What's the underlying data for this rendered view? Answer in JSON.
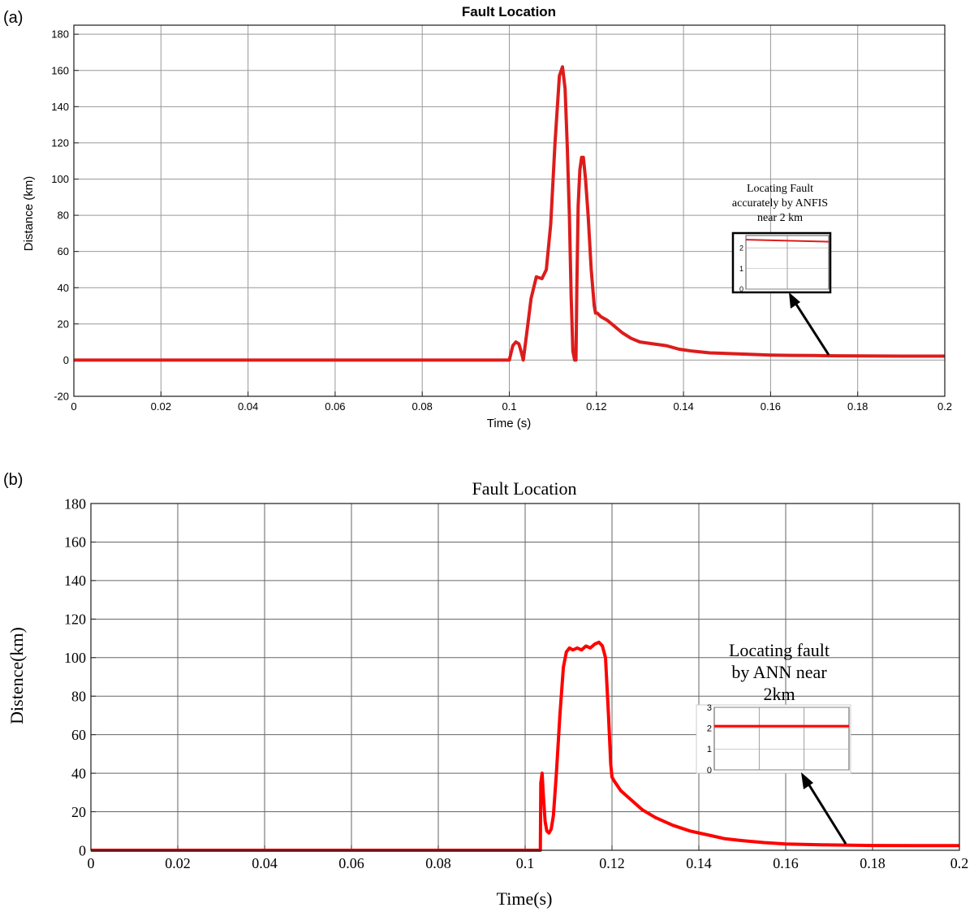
{
  "chart_data": [
    {
      "panel": "(a)",
      "type": "line",
      "title": "Fault Location",
      "xlabel": "Time (s)",
      "ylabel": "Distance (km)",
      "xlim": [
        0,
        0.2
      ],
      "ylim": [
        -20,
        185
      ],
      "xticks": [
        "0",
        "0.02",
        "0.04",
        "0.06",
        "0.08",
        "0.1",
        "0.12",
        "0.14",
        "0.16",
        "0.18",
        "0.2"
      ],
      "yticks": [
        "-20",
        "0",
        "20",
        "40",
        "60",
        "80",
        "100",
        "120",
        "140",
        "160",
        "180"
      ],
      "grid": true,
      "color": "#dd1c1c",
      "series": [
        {
          "x": [
            0,
            0.1,
            0.1003,
            0.1008,
            0.1015,
            0.1022,
            0.1028,
            0.1032,
            0.104,
            0.105,
            0.1062,
            0.1075,
            0.1085,
            0.1095,
            0.1105,
            0.1115,
            0.1122,
            0.1128,
            0.1133,
            0.1138,
            0.1142,
            0.1146,
            0.115,
            0.1153,
            0.1155,
            0.1158,
            0.1162,
            0.1166,
            0.117,
            0.1175,
            0.1181,
            0.1188,
            0.1195,
            0.1198,
            0.1202,
            0.121,
            0.1225,
            0.124,
            0.126,
            0.128,
            0.13,
            0.133,
            0.136,
            0.139,
            0.142,
            0.146,
            0.15,
            0.155,
            0.16,
            0.165,
            0.17,
            0.175,
            0.18,
            0.19,
            0.2
          ],
          "y": [
            0,
            0,
            3,
            8,
            10,
            9,
            4,
            0,
            15,
            34,
            46,
            45,
            50,
            75,
            120,
            157,
            162,
            150,
            118,
            80,
            35,
            5,
            0,
            0,
            40,
            85,
            105,
            112,
            112,
            100,
            80,
            50,
            30,
            26,
            26,
            24,
            22,
            19,
            15,
            12,
            10,
            9,
            8,
            6,
            5,
            4,
            3.7,
            3.2,
            2.8,
            2.6,
            2.5,
            2.4,
            2.3,
            2.2,
            2.2
          ]
        }
      ],
      "inset": {
        "yticks": [
          "2",
          "1",
          "0"
        ],
        "ylim": [
          0,
          2.6
        ],
        "line_y": [
          2.4,
          2.3
        ]
      },
      "annotation": [
        "Locating Fault",
        "accurately by ANFIS",
        "near 2 km"
      ]
    },
    {
      "panel": "(b)",
      "type": "line",
      "title": "Fault Location",
      "xlabel": "Time(s)",
      "ylabel": "Distence(km)",
      "xlim": [
        0,
        0.2
      ],
      "ylim": [
        0,
        180
      ],
      "xticks": [
        "0",
        "0.02",
        "0.04",
        "0.06",
        "0.08",
        "0.1",
        "0.12",
        "0.14",
        "0.16",
        "0.18",
        "0.2"
      ],
      "yticks": [
        "0",
        "20",
        "40",
        "60",
        "80",
        "100",
        "120",
        "140",
        "160",
        "180"
      ],
      "grid": true,
      "color": "#ff0000",
      "series": [
        {
          "x": [
            0,
            0.1035,
            0.1036,
            0.1039,
            0.1042,
            0.1046,
            0.105,
            0.1055,
            0.106,
            0.1065,
            0.1072,
            0.108,
            0.1088,
            0.1095,
            0.1102,
            0.111,
            0.112,
            0.113,
            0.114,
            0.115,
            0.116,
            0.117,
            0.1178,
            0.1185,
            0.1192,
            0.1197,
            0.12,
            0.1205,
            0.122,
            0.124,
            0.127,
            0.13,
            0.134,
            0.138,
            0.142,
            0.146,
            0.15,
            0.155,
            0.16,
            0.165,
            0.17,
            0.175,
            0.18,
            0.19,
            0.2
          ],
          "y": [
            0,
            0,
            35,
            40,
            28,
            15,
            10,
            9,
            11,
            18,
            40,
            70,
            95,
            103,
            105,
            104,
            105,
            104,
            106,
            105,
            107,
            108,
            106,
            100,
            70,
            45,
            38,
            36,
            31,
            27,
            21,
            17,
            13,
            10,
            8,
            6,
            5,
            4,
            3.3,
            3.0,
            2.8,
            2.6,
            2.5,
            2.4,
            2.4
          ]
        }
      ],
      "inset": {
        "yticks": [
          "3",
          "2",
          "1",
          "0"
        ],
        "ylim": [
          0,
          3
        ],
        "line_y": [
          2.1,
          2.1
        ]
      },
      "annotation": [
        "Locating fault",
        "by ANN near",
        "2km"
      ]
    }
  ]
}
